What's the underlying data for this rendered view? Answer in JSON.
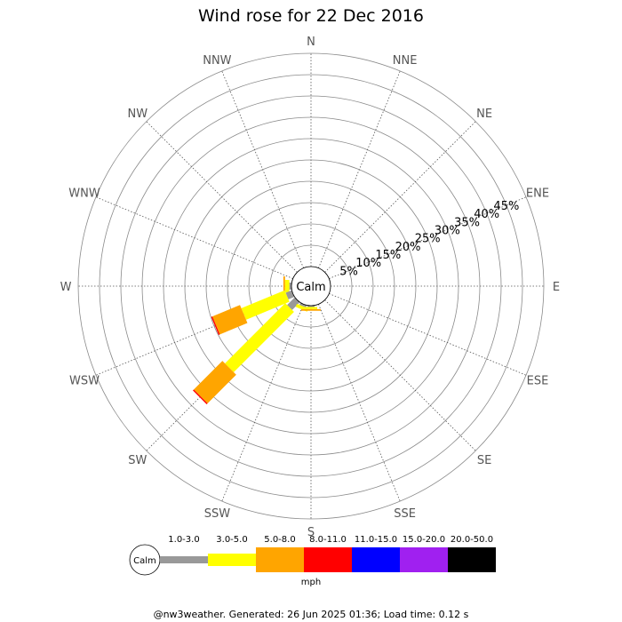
{
  "chart_data": {
    "type": "wind-rose",
    "title": "Wind rose for 22 Dec 2016",
    "directions": [
      "N",
      "NNE",
      "NE",
      "ENE",
      "E",
      "ESE",
      "SE",
      "SSE",
      "S",
      "SSW",
      "SW",
      "WSW",
      "W",
      "WNW",
      "NW",
      "NNW"
    ],
    "ring_labels": [
      "5%",
      "10%",
      "15%",
      "20%",
      "25%",
      "30%",
      "35%",
      "40%",
      "45%"
    ],
    "rmax_percent": 50,
    "calm_label": "Calm",
    "speed_bins": [
      {
        "label": "1.0-3.0",
        "color": "#999999"
      },
      {
        "label": "3.0-5.0",
        "color": "#ffff00"
      },
      {
        "label": "5.0-8.0",
        "color": "#ffa500"
      },
      {
        "label": "8.0-11.0",
        "color": "#ff0000"
      },
      {
        "label": "11.0-15.0",
        "color": "#0000ff"
      },
      {
        "label": "15.0-20.0",
        "color": "#a020f0"
      },
      {
        "label": "20.0-50.0",
        "color": "#000000"
      }
    ],
    "unit": "mph",
    "series": [
      {
        "direction": "W",
        "values": [
          0.5,
          1.0,
          0.4,
          0,
          0,
          0,
          0
        ]
      },
      {
        "direction": "WSW",
        "values": [
          1.5,
          11.0,
          7.0,
          0.3,
          0,
          0,
          0
        ]
      },
      {
        "direction": "SW",
        "values": [
          2.5,
          20.0,
          9.5,
          0.3,
          0,
          0,
          0
        ]
      },
      {
        "direction": "SSW",
        "values": [
          0.5,
          0.8,
          0,
          0,
          0,
          0,
          0
        ]
      },
      {
        "direction": "S",
        "values": [
          0.3,
          0.5,
          0.4,
          0,
          0,
          0,
          0
        ]
      }
    ]
  },
  "footer": "@nw3weather. Generated: 26 Jun 2025 01:36; Load time: 0.12 s"
}
